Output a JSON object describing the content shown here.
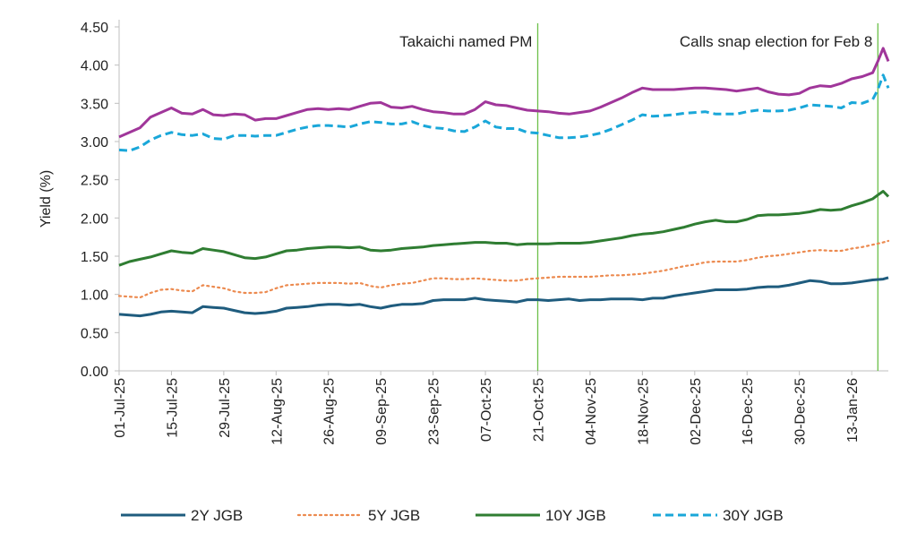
{
  "chart_data": {
    "type": "line",
    "title": "",
    "xlabel": "",
    "ylabel": "Yield (%)",
    "ylim": [
      0,
      4.5
    ],
    "y_ticks": [
      "0.00",
      "0.50",
      "1.00",
      "1.50",
      "2.00",
      "2.50",
      "3.00",
      "3.50",
      "4.00",
      "4.50"
    ],
    "y_tick_values": [
      0,
      0.5,
      1.0,
      1.5,
      2.0,
      2.5,
      3.0,
      3.5,
      4.0,
      4.5
    ],
    "x_range": [
      0,
      147
    ],
    "x_ticks": [
      {
        "label": "01-Jul-25",
        "index": 0
      },
      {
        "label": "15-Jul-25",
        "index": 10
      },
      {
        "label": "29-Jul-25",
        "index": 20
      },
      {
        "label": "12-Aug-25",
        "index": 30
      },
      {
        "label": "26-Aug-25",
        "index": 40
      },
      {
        "label": "09-Sep-25",
        "index": 50
      },
      {
        "label": "23-Sep-25",
        "index": 60
      },
      {
        "label": "07-Oct-25",
        "index": 70
      },
      {
        "label": "21-Oct-25",
        "index": 80
      },
      {
        "label": "04-Nov-25",
        "index": 90
      },
      {
        "label": "18-Nov-25",
        "index": 100
      },
      {
        "label": "02-Dec-25",
        "index": 110
      },
      {
        "label": "16-Dec-25",
        "index": 120
      },
      {
        "label": "30-Dec-25",
        "index": 130
      },
      {
        "label": "13-Jan-26",
        "index": 140
      }
    ],
    "annotations": [
      {
        "text": "Takaichi named PM",
        "x": 80
      },
      {
        "text": "Calls snap election for Feb 8",
        "x": 145
      }
    ],
    "legend_position": "bottom",
    "colors": {
      "2Y JGB": "#1f5c7e",
      "5Y JGB": "#ec8a4f",
      "10Y JGB": "#2f7d32",
      "30Y JGB": "#1aa7d9",
      "purple": "#a0369a",
      "vline": "#6cc04a"
    },
    "series": [
      {
        "name": "2Y JGB",
        "style": "solid",
        "x": [
          0,
          2,
          4,
          6,
          8,
          10,
          12,
          14,
          16,
          18,
          20,
          22,
          24,
          26,
          28,
          30,
          32,
          34,
          36,
          38,
          40,
          42,
          44,
          46,
          48,
          50,
          52,
          54,
          56,
          58,
          60,
          62,
          64,
          66,
          68,
          70,
          72,
          74,
          76,
          78,
          80,
          82,
          84,
          86,
          88,
          90,
          92,
          94,
          96,
          98,
          100,
          102,
          104,
          106,
          108,
          110,
          112,
          114,
          116,
          118,
          120,
          122,
          124,
          126,
          128,
          130,
          132,
          134,
          136,
          138,
          140,
          142,
          144,
          146,
          147
        ],
        "values": [
          0.74,
          0.73,
          0.72,
          0.74,
          0.77,
          0.78,
          0.77,
          0.76,
          0.84,
          0.83,
          0.82,
          0.79,
          0.76,
          0.75,
          0.76,
          0.78,
          0.82,
          0.83,
          0.84,
          0.86,
          0.87,
          0.87,
          0.86,
          0.87,
          0.84,
          0.82,
          0.85,
          0.87,
          0.87,
          0.88,
          0.92,
          0.93,
          0.93,
          0.93,
          0.95,
          0.93,
          0.92,
          0.91,
          0.9,
          0.93,
          0.93,
          0.92,
          0.93,
          0.94,
          0.92,
          0.93,
          0.93,
          0.94,
          0.94,
          0.94,
          0.93,
          0.95,
          0.95,
          0.98,
          1.0,
          1.02,
          1.04,
          1.06,
          1.06,
          1.06,
          1.07,
          1.09,
          1.1,
          1.1,
          1.12,
          1.15,
          1.18,
          1.17,
          1.14,
          1.14,
          1.15,
          1.17,
          1.19,
          1.2,
          1.22
        ]
      },
      {
        "name": "5Y JGB",
        "style": "dotted",
        "x": [
          0,
          2,
          4,
          6,
          8,
          10,
          12,
          14,
          16,
          18,
          20,
          22,
          24,
          26,
          28,
          30,
          32,
          34,
          36,
          38,
          40,
          42,
          44,
          46,
          48,
          50,
          52,
          54,
          56,
          58,
          60,
          62,
          64,
          66,
          68,
          70,
          72,
          74,
          76,
          78,
          80,
          82,
          84,
          86,
          88,
          90,
          92,
          94,
          96,
          98,
          100,
          102,
          104,
          106,
          108,
          110,
          112,
          114,
          116,
          118,
          120,
          122,
          124,
          126,
          128,
          130,
          132,
          134,
          136,
          138,
          140,
          142,
          144,
          146,
          147
        ],
        "values": [
          0.98,
          0.97,
          0.96,
          1.02,
          1.06,
          1.07,
          1.05,
          1.04,
          1.12,
          1.1,
          1.08,
          1.04,
          1.02,
          1.02,
          1.03,
          1.08,
          1.12,
          1.13,
          1.14,
          1.15,
          1.15,
          1.15,
          1.14,
          1.15,
          1.11,
          1.09,
          1.12,
          1.14,
          1.15,
          1.18,
          1.21,
          1.21,
          1.2,
          1.2,
          1.21,
          1.2,
          1.19,
          1.18,
          1.18,
          1.2,
          1.21,
          1.22,
          1.23,
          1.23,
          1.23,
          1.23,
          1.24,
          1.25,
          1.25,
          1.26,
          1.27,
          1.29,
          1.31,
          1.34,
          1.37,
          1.39,
          1.42,
          1.43,
          1.43,
          1.43,
          1.45,
          1.48,
          1.5,
          1.51,
          1.53,
          1.55,
          1.57,
          1.58,
          1.57,
          1.57,
          1.6,
          1.62,
          1.65,
          1.68,
          1.7
        ]
      },
      {
        "name": "10Y JGB",
        "style": "solid",
        "x": [
          0,
          2,
          4,
          6,
          8,
          10,
          12,
          14,
          16,
          18,
          20,
          22,
          24,
          26,
          28,
          30,
          32,
          34,
          36,
          38,
          40,
          42,
          44,
          46,
          48,
          50,
          52,
          54,
          56,
          58,
          60,
          62,
          64,
          66,
          68,
          70,
          72,
          74,
          76,
          78,
          80,
          82,
          84,
          86,
          88,
          90,
          92,
          94,
          96,
          98,
          100,
          102,
          104,
          106,
          108,
          110,
          112,
          114,
          116,
          118,
          120,
          122,
          124,
          126,
          128,
          130,
          132,
          134,
          136,
          138,
          140,
          142,
          144,
          145,
          146,
          147
        ],
        "values": [
          1.38,
          1.43,
          1.46,
          1.49,
          1.53,
          1.57,
          1.55,
          1.54,
          1.6,
          1.58,
          1.56,
          1.52,
          1.48,
          1.47,
          1.49,
          1.53,
          1.57,
          1.58,
          1.6,
          1.61,
          1.62,
          1.62,
          1.61,
          1.62,
          1.58,
          1.57,
          1.58,
          1.6,
          1.61,
          1.62,
          1.64,
          1.65,
          1.66,
          1.67,
          1.68,
          1.68,
          1.67,
          1.67,
          1.65,
          1.66,
          1.66,
          1.66,
          1.67,
          1.67,
          1.67,
          1.68,
          1.7,
          1.72,
          1.74,
          1.77,
          1.79,
          1.8,
          1.82,
          1.85,
          1.88,
          1.92,
          1.95,
          1.97,
          1.95,
          1.95,
          1.98,
          2.03,
          2.04,
          2.04,
          2.05,
          2.06,
          2.08,
          2.11,
          2.1,
          2.11,
          2.16,
          2.2,
          2.25,
          2.3,
          2.35,
          2.28
        ]
      },
      {
        "name": "30Y JGB",
        "style": "dashed",
        "x": [
          0,
          2,
          4,
          6,
          8,
          10,
          12,
          14,
          16,
          18,
          20,
          22,
          24,
          26,
          28,
          30,
          32,
          34,
          36,
          38,
          40,
          42,
          44,
          46,
          48,
          50,
          52,
          54,
          56,
          58,
          60,
          62,
          64,
          66,
          68,
          70,
          72,
          74,
          76,
          78,
          80,
          82,
          84,
          86,
          88,
          90,
          92,
          94,
          96,
          98,
          100,
          102,
          104,
          106,
          108,
          110,
          112,
          114,
          116,
          118,
          120,
          122,
          124,
          126,
          128,
          130,
          132,
          134,
          136,
          138,
          140,
          142,
          144,
          145,
          146,
          147
        ],
        "values": [
          2.89,
          2.88,
          2.93,
          3.02,
          3.08,
          3.12,
          3.09,
          3.08,
          3.1,
          3.04,
          3.03,
          3.08,
          3.08,
          3.07,
          3.08,
          3.08,
          3.12,
          3.16,
          3.19,
          3.21,
          3.21,
          3.2,
          3.19,
          3.23,
          3.26,
          3.25,
          3.23,
          3.23,
          3.26,
          3.21,
          3.18,
          3.17,
          3.14,
          3.13,
          3.19,
          3.27,
          3.19,
          3.17,
          3.17,
          3.12,
          3.11,
          3.08,
          3.05,
          3.05,
          3.06,
          3.08,
          3.11,
          3.16,
          3.22,
          3.28,
          3.35,
          3.33,
          3.34,
          3.35,
          3.37,
          3.38,
          3.39,
          3.36,
          3.36,
          3.36,
          3.39,
          3.41,
          3.4,
          3.4,
          3.41,
          3.44,
          3.48,
          3.47,
          3.46,
          3.44,
          3.51,
          3.5,
          3.55,
          3.68,
          3.87,
          3.7
        ]
      },
      {
        "name": "",
        "style": "solid",
        "x": [
          0,
          2,
          4,
          6,
          8,
          10,
          12,
          14,
          16,
          18,
          20,
          22,
          24,
          26,
          28,
          30,
          32,
          34,
          36,
          38,
          40,
          42,
          44,
          46,
          48,
          50,
          52,
          54,
          56,
          58,
          60,
          62,
          64,
          66,
          68,
          70,
          72,
          74,
          76,
          78,
          80,
          82,
          84,
          86,
          88,
          90,
          92,
          94,
          96,
          98,
          100,
          102,
          104,
          106,
          108,
          110,
          112,
          114,
          116,
          118,
          120,
          122,
          124,
          126,
          128,
          130,
          132,
          134,
          136,
          138,
          140,
          142,
          144,
          145,
          146,
          147
        ],
        "values": [
          3.06,
          3.12,
          3.18,
          3.32,
          3.38,
          3.44,
          3.37,
          3.36,
          3.42,
          3.35,
          3.34,
          3.36,
          3.35,
          3.28,
          3.3,
          3.3,
          3.34,
          3.38,
          3.42,
          3.43,
          3.42,
          3.43,
          3.42,
          3.46,
          3.5,
          3.51,
          3.45,
          3.44,
          3.46,
          3.42,
          3.39,
          3.38,
          3.36,
          3.36,
          3.42,
          3.52,
          3.48,
          3.47,
          3.44,
          3.41,
          3.4,
          3.39,
          3.37,
          3.36,
          3.38,
          3.4,
          3.45,
          3.51,
          3.57,
          3.64,
          3.7,
          3.68,
          3.68,
          3.68,
          3.69,
          3.7,
          3.7,
          3.69,
          3.68,
          3.66,
          3.68,
          3.7,
          3.65,
          3.62,
          3.61,
          3.63,
          3.7,
          3.73,
          3.72,
          3.76,
          3.82,
          3.85,
          3.9,
          4.05,
          4.22,
          4.05
        ]
      }
    ]
  }
}
